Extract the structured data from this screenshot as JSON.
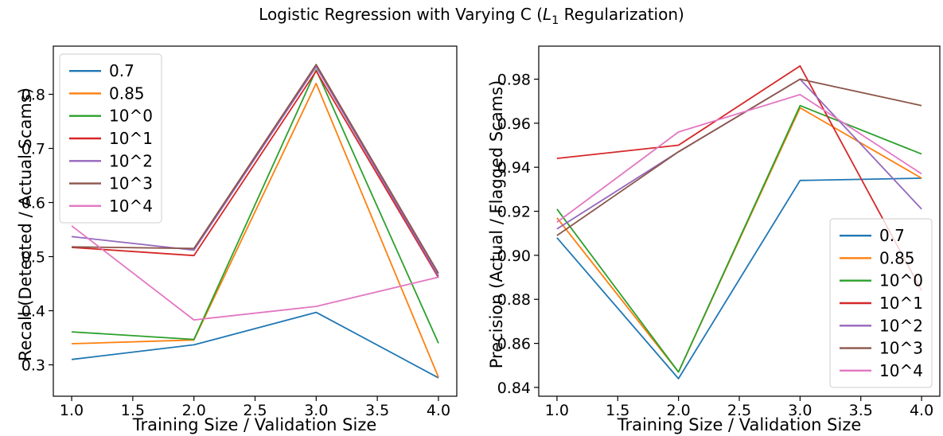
{
  "figure": {
    "title": {
      "prefix": "Logistic Regression with Varying C (",
      "var": "L",
      "subscript": "1",
      "suffix": " Regularization)"
    },
    "background_color": "#ffffff",
    "axis_color": "#000000",
    "legend_border_color": "#cccccc",
    "legend_background": "rgba(255,255,255,0.8)"
  },
  "chart_data": [
    {
      "type": "line",
      "xlabel": "Training Size / Validation Size",
      "ylabel": "Recall (Detected / Actual Scams)",
      "x": [
        1,
        2,
        3,
        4
      ],
      "xlim": [
        0.85,
        4.15
      ],
      "ylim": [
        0.242,
        0.889
      ],
      "grid": false,
      "legend_position": "upper-left",
      "xticks": {
        "values": [
          1.0,
          1.5,
          2.0,
          2.5,
          3.0,
          3.5,
          4.0
        ],
        "labels": [
          "1.0",
          "1.5",
          "2.0",
          "2.5",
          "3.0",
          "3.5",
          "4.0"
        ]
      },
      "yticks": {
        "values": [
          0.3,
          0.4,
          0.5,
          0.6,
          0.7,
          0.8
        ],
        "labels": [
          "0.3",
          "0.4",
          "0.5",
          "0.6",
          "0.7",
          "0.8"
        ]
      },
      "series": [
        {
          "name": "0.7",
          "color": "#1f77b4",
          "values": [
            0.31,
            0.337,
            0.397,
            0.276
          ]
        },
        {
          "name": "0.85",
          "color": "#ff7f0e",
          "values": [
            0.339,
            0.346,
            0.82,
            0.277
          ]
        },
        {
          "name": "10^0",
          "color": "#2ca02c",
          "values": [
            0.361,
            0.347,
            0.845,
            0.34
          ]
        },
        {
          "name": "10^1",
          "color": "#d62728",
          "values": [
            0.517,
            0.502,
            0.843,
            0.461
          ]
        },
        {
          "name": "10^2",
          "color": "#9467bd",
          "values": [
            0.537,
            0.512,
            0.851,
            0.464
          ]
        },
        {
          "name": "10^3",
          "color": "#8c564b",
          "values": [
            0.518,
            0.515,
            0.855,
            0.469
          ]
        },
        {
          "name": "10^4",
          "color": "#e377c2",
          "values": [
            0.557,
            0.383,
            0.408,
            0.462
          ]
        }
      ]
    },
    {
      "type": "line",
      "xlabel": "Training Size / Validation Size",
      "ylabel": "Precision (Actual / Flagged Scams)",
      "x": [
        1,
        2,
        3,
        4
      ],
      "xlim": [
        0.85,
        4.15
      ],
      "ylim": [
        0.836,
        0.995
      ],
      "grid": false,
      "legend_position": "lower-right",
      "xticks": {
        "values": [
          1.0,
          1.5,
          2.0,
          2.5,
          3.0,
          3.5,
          4.0
        ],
        "labels": [
          "1.0",
          "1.5",
          "2.0",
          "2.5",
          "3.0",
          "3.5",
          "4.0"
        ]
      },
      "yticks": {
        "values": [
          0.84,
          0.86,
          0.88,
          0.9,
          0.92,
          0.94,
          0.96,
          0.98
        ],
        "labels": [
          "0.84",
          "0.86",
          "0.88",
          "0.90",
          "0.92",
          "0.94",
          "0.96",
          "0.98"
        ]
      },
      "series": [
        {
          "name": "0.7",
          "color": "#1f77b4",
          "values": [
            0.908,
            0.844,
            0.934,
            0.935
          ]
        },
        {
          "name": "0.85",
          "color": "#ff7f0e",
          "values": [
            0.917,
            0.847,
            0.967,
            0.935
          ]
        },
        {
          "name": "10^0",
          "color": "#2ca02c",
          "values": [
            0.921,
            0.847,
            0.968,
            0.946
          ]
        },
        {
          "name": "10^1",
          "color": "#d62728",
          "values": [
            0.944,
            0.95,
            0.986,
            0.884
          ]
        },
        {
          "name": "10^2",
          "color": "#9467bd",
          "values": [
            0.912,
            0.947,
            0.98,
            0.921
          ]
        },
        {
          "name": "10^3",
          "color": "#8c564b",
          "values": [
            0.909,
            0.947,
            0.98,
            0.968
          ]
        },
        {
          "name": "10^4",
          "color": "#e377c2",
          "values": [
            0.915,
            0.956,
            0.973,
            0.937
          ]
        }
      ]
    }
  ]
}
